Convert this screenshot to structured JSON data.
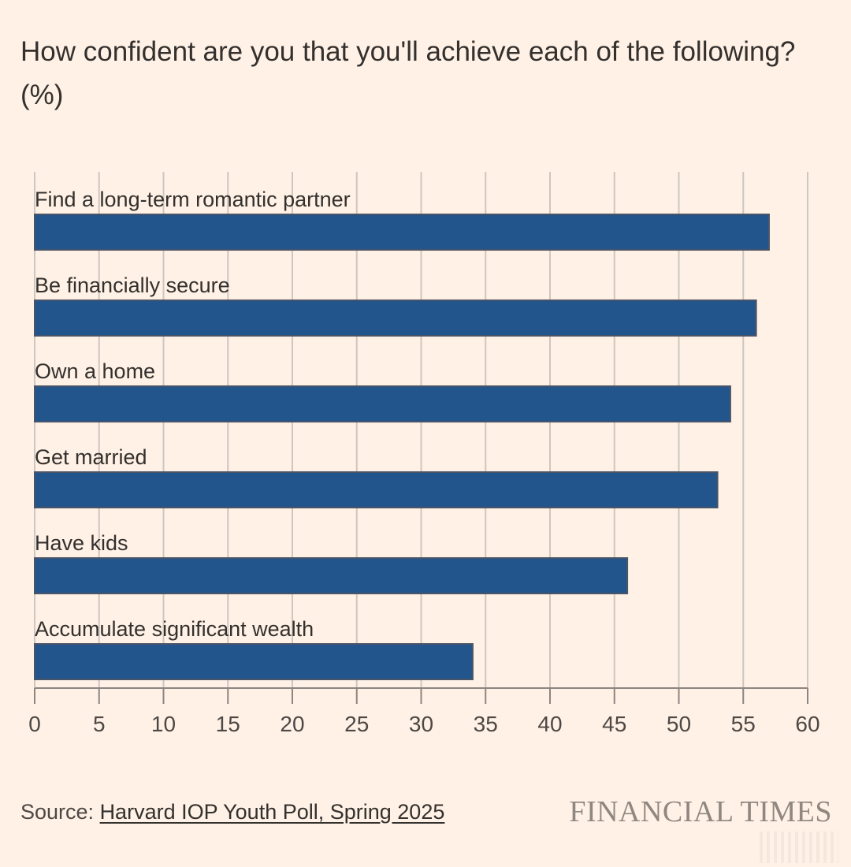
{
  "header": {
    "title": "How confident are you that you'll achieve each of the following? (%)"
  },
  "footer": {
    "source_prefix": "Source: ",
    "source_link": "Harvard IOP Youth Poll, Spring 2025",
    "brand": "FINANCIAL TIMES"
  },
  "colors": {
    "background": "#fff1e5",
    "bar": "#22558b",
    "bar_edge": "#4a5468",
    "grid": "#cec6c0",
    "axis": "#8c8580"
  },
  "chart_data": {
    "type": "bar",
    "orientation": "horizontal",
    "title": "How confident are you that you'll achieve each of the following? (%)",
    "xlabel": "",
    "ylabel": "",
    "categories": [
      "Find a long-term romantic partner",
      "Be financially secure",
      "Own a home",
      "Get married",
      "Have kids",
      "Accumulate significant wealth"
    ],
    "values": [
      57,
      56,
      54,
      53,
      46,
      34
    ],
    "xlim": [
      0,
      60
    ],
    "xticks": [
      0,
      5,
      10,
      15,
      20,
      25,
      30,
      35,
      40,
      45,
      50,
      55,
      60
    ],
    "grid": true,
    "legend": "none",
    "source": "Harvard IOP Youth Poll, Spring 2025"
  }
}
